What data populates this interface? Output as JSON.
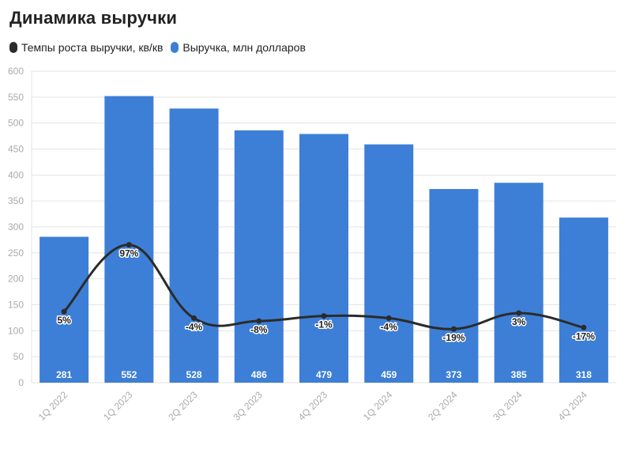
{
  "title": "Динамика выручки",
  "colors": {
    "bar": "#3d7fd6",
    "line": "#2b2b2b",
    "grid": "#e3e3e3",
    "text": "#222222",
    "axis_text": "#aaaaaa"
  },
  "chart_data": {
    "type": "bar",
    "title": "Динамика выручки",
    "legend_position": "top-left",
    "grid": true,
    "categories": [
      "1Q 2022",
      "1Q 2023",
      "2Q 2023",
      "3Q 2023",
      "4Q 2023",
      "1Q 2024",
      "2Q 2024",
      "3Q 2024",
      "4Q 2024"
    ],
    "ylim": [
      0,
      600
    ],
    "yticks": [
      0,
      50,
      100,
      150,
      200,
      250,
      300,
      350,
      400,
      450,
      500,
      550,
      600
    ],
    "series": [
      {
        "name": "Выручка, млн долларов",
        "kind": "bar",
        "color": "#3d7fd6",
        "values": [
          281,
          552,
          528,
          486,
          479,
          459,
          373,
          385,
          318
        ],
        "labels": [
          "281",
          "552",
          "528",
          "486",
          "479",
          "459",
          "373",
          "385",
          "318"
        ]
      },
      {
        "name": "Темпы роста выручки, кв/кв",
        "kind": "line",
        "color": "#2b2b2b",
        "values": [
          5,
          97,
          -4,
          -8,
          -1,
          -4,
          -19,
          3,
          -17
        ],
        "labels": [
          "5%",
          "97%",
          "-4%",
          "-8%",
          "-1%",
          "-4%",
          "-19%",
          "3%",
          "-17%"
        ]
      }
    ]
  }
}
